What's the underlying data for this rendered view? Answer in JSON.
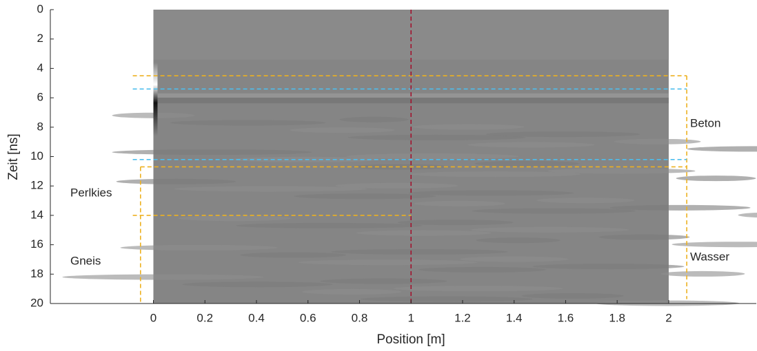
{
  "chart_data": {
    "type": "radargram",
    "xlabel": "Position [m]",
    "ylabel": "Zeit [ns]",
    "xlim": [
      -0.4,
      2.34
    ],
    "ylim": [
      0,
      20
    ],
    "xticks": [
      0,
      0.2,
      0.4,
      0.6,
      0.8,
      1,
      1.2,
      1.4,
      1.6,
      1.8,
      2
    ],
    "yticks": [
      0,
      2,
      4,
      6,
      8,
      10,
      12,
      14,
      16,
      18,
      20
    ],
    "y_reversed": true,
    "image": {
      "x": [
        0,
        2
      ],
      "y": [
        0,
        20
      ],
      "color": "#858585"
    },
    "lines": [
      {
        "x": [
          -0.08,
          2.07
        ],
        "y": [
          4.5,
          4.5
        ],
        "color": "#EDB120"
      },
      {
        "x": [
          2.07,
          2.07
        ],
        "y": [
          4.5,
          19.7
        ],
        "color": "#EDB120"
      },
      {
        "x": [
          -0.05,
          2.07
        ],
        "y": [
          10.7,
          10.7
        ],
        "color": "#EDB120"
      },
      {
        "x": [
          -0.05,
          -0.05
        ],
        "y": [
          10.7,
          20
        ],
        "color": "#EDB120"
      },
      {
        "x": [
          -0.08,
          1
        ],
        "y": [
          14,
          14
        ],
        "color": "#EDB120"
      },
      {
        "x": [
          -0.08,
          2.07
        ],
        "y": [
          5.4,
          5.4
        ],
        "color": "#4DBEEE"
      },
      {
        "x": [
          -0.08,
          2.07
        ],
        "y": [
          10.2,
          10.2
        ],
        "color": "#4DBEEE"
      },
      {
        "x": [
          1,
          1
        ],
        "y": [
          0,
          20
        ],
        "color": "#A2142F"
      }
    ],
    "annotations": [
      "Beton",
      "Wasser",
      "Perlkies",
      "Gneis"
    ]
  }
}
